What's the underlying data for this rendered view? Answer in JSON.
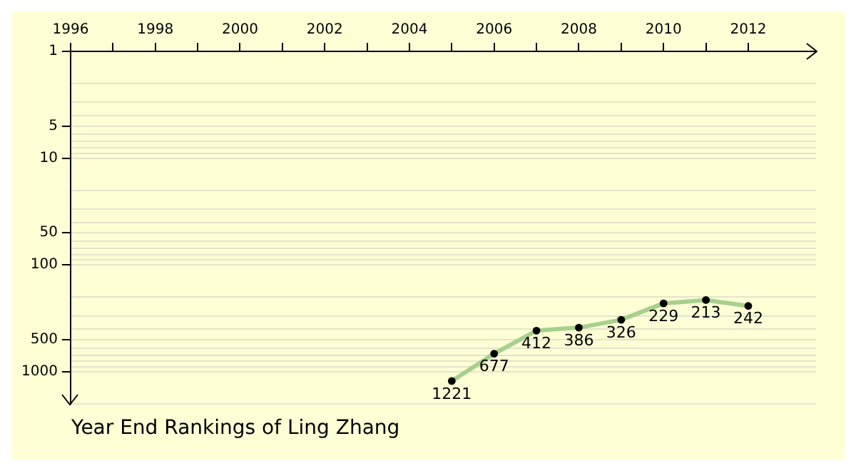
{
  "chart_data": {
    "type": "line",
    "title": "Year End Rankings of Ling Zhang",
    "x": [
      2005,
      2006,
      2007,
      2008,
      2009,
      2010,
      2011,
      2012
    ],
    "series": [
      {
        "color": "#a8d08d",
        "values": [
          1221,
          677,
          412,
          386,
          326,
          229,
          213,
          242
        ]
      }
    ],
    "log": "y",
    "xlim": [
      1996,
      2013.6
    ],
    "xticks": [
      1996,
      {
        "value": 1997,
        "label": null
      },
      1998,
      {
        "value": 1999,
        "label": null
      },
      2000,
      {
        "value": 2001,
        "label": null
      },
      2002,
      {
        "value": 2003,
        "label": null
      },
      2004,
      {
        "value": 2005,
        "label": null
      },
      2006,
      {
        "value": 2007,
        "label": null
      },
      2008,
      {
        "value": 2009,
        "label": null
      },
      2010,
      {
        "value": 2011,
        "label": null
      },
      2012
    ],
    "ylim": [
      2000,
      1
    ],
    "yticks": [
      1,
      {
        "value": 2,
        "label": null
      },
      {
        "value": 3,
        "label": null
      },
      {
        "value": 4,
        "label": null
      },
      5,
      {
        "value": 6,
        "label": null
      },
      {
        "value": 7,
        "label": null
      },
      {
        "value": 8,
        "label": null
      },
      {
        "value": 9,
        "label": null
      },
      10,
      {
        "value": 20,
        "label": null
      },
      {
        "value": 30,
        "label": null
      },
      {
        "value": 40,
        "label": null
      },
      50,
      {
        "value": 60,
        "label": null
      },
      {
        "value": 70,
        "label": null
      },
      {
        "value": 80,
        "label": null
      },
      {
        "value": 90,
        "label": null
      },
      100,
      {
        "value": 200,
        "label": null
      },
      {
        "value": 300,
        "label": null
      },
      {
        "value": 400,
        "label": null
      },
      500,
      {
        "value": 600,
        "label": null
      },
      {
        "value": 700,
        "label": null
      },
      {
        "value": 800,
        "label": null
      },
      {
        "value": 900,
        "label": null
      },
      1000,
      {
        "value": 2000,
        "label": null
      }
    ],
    "grid": "y",
    "marker": "circle",
    "line_style": "solid",
    "data_labels": true
  }
}
